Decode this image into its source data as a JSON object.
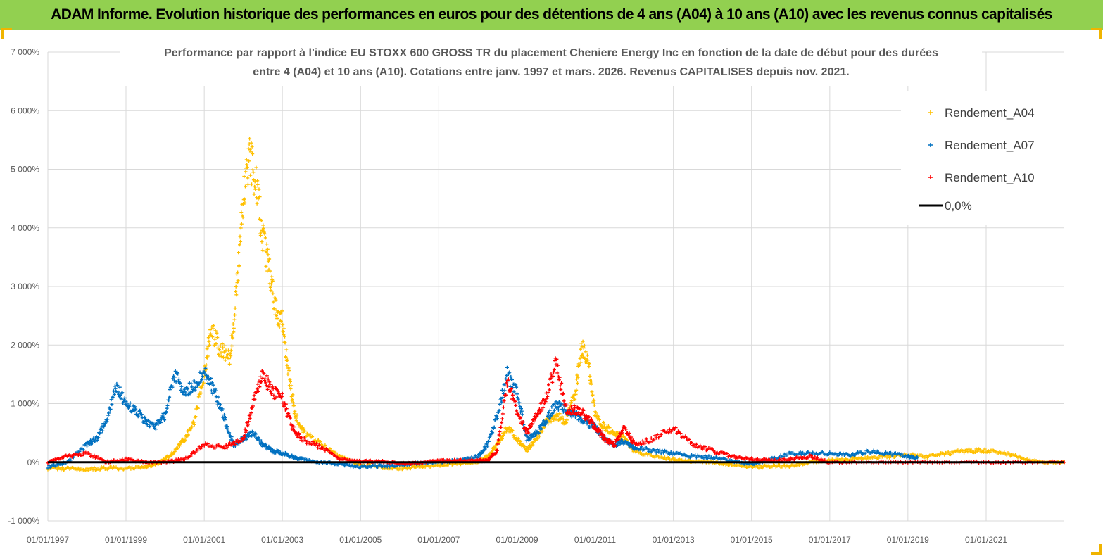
{
  "header": {
    "title": "ADAM Informe. Evolution historique des performances en euros pour des détentions de 4 ans (A04) à 10 ans (A10) avec les revenus connus capitalisés"
  },
  "colors": {
    "banner": "#92d050",
    "a04": "#ffc000",
    "a07": "#0070c0",
    "a10": "#ff0000",
    "zero": "#000000",
    "grid": "#d9d9d9"
  },
  "chart_data": {
    "type": "scatter",
    "title_lines": [
      "Performance par rapport à l'indice EU STOXX 600 GROSS TR  du placement Cheniere Energy Inc en fonction de la date de début pour des durées",
      "entre 4 (A04) et 10 ans (A10). Cotations entre janv. 1997 et mars. 2026. Revenus CAPITALISES depuis nov. 2021."
    ],
    "xlim": [
      "1997-01-01",
      "2023-01-01"
    ],
    "ylim": [
      -1000,
      7000
    ],
    "y_ticks": [
      "-1 000%",
      "0%",
      "1 000%",
      "2 000%",
      "3 000%",
      "4 000%",
      "5 000%",
      "6 000%",
      "7 000%"
    ],
    "x_ticks": [
      "01/01/1997",
      "01/01/1999",
      "01/01/2001",
      "01/01/2003",
      "01/01/2005",
      "01/01/2007",
      "01/01/2009",
      "01/01/2011",
      "01/01/2013",
      "01/01/2015",
      "01/01/2017",
      "01/01/2019",
      "01/01/2021"
    ],
    "grid": true,
    "legend_position": "top-right",
    "legend": [
      "Rendement_A04",
      "Rendement_A07",
      "Rendement_A10",
      "0,0%"
    ],
    "series": [
      {
        "name": "Rendement_A04",
        "color": "#ffc000",
        "x": [
          "1997-01-01",
          "1997-07-01",
          "1998-01-01",
          "1998-07-01",
          "1999-01-01",
          "1999-07-01",
          "1999-10-01",
          "2000-01-01",
          "2000-04-01",
          "2000-07-01",
          "2000-10-01",
          "2001-01-01",
          "2001-03-01",
          "2001-06-01",
          "2001-09-01",
          "2001-11-01",
          "2002-01-01",
          "2002-03-01",
          "2002-05-01",
          "2002-07-01",
          "2002-09-01",
          "2002-11-01",
          "2003-01-01",
          "2003-03-01",
          "2003-05-01",
          "2003-08-01",
          "2004-01-01",
          "2004-07-01",
          "2005-01-01",
          "2005-07-01",
          "2006-01-01",
          "2006-07-01",
          "2007-01-01",
          "2007-07-01",
          "2008-01-01",
          "2008-04-01",
          "2008-07-01",
          "2008-10-01",
          "2009-01-01",
          "2009-04-01",
          "2009-07-01",
          "2009-10-01",
          "2010-01-01",
          "2010-04-01",
          "2010-07-01",
          "2010-09-01",
          "2010-11-01",
          "2011-01-01",
          "2011-04-01",
          "2011-07-01",
          "2011-10-01",
          "2012-01-01",
          "2012-07-01",
          "2013-01-01",
          "2013-07-01",
          "2014-01-01",
          "2014-07-01",
          "2015-01-01",
          "2015-07-01",
          "2016-01-01",
          "2016-07-01",
          "2017-01-01",
          "2017-07-01",
          "2018-01-01",
          "2018-07-01",
          "2019-01-01",
          "2019-07-01",
          "2020-01-01",
          "2020-07-01",
          "2021-01-01",
          "2021-07-01",
          "2022-01-01",
          "2022-07-01",
          "2023-01-01"
        ],
        "y": [
          -100,
          -110,
          -120,
          -100,
          -100,
          -80,
          -40,
          50,
          200,
          400,
          700,
          1500,
          2300,
          1900,
          1800,
          3000,
          4500,
          5200,
          4800,
          3800,
          3300,
          2600,
          2400,
          1500,
          800,
          500,
          300,
          100,
          -50,
          -80,
          -100,
          -80,
          -50,
          -20,
          0,
          100,
          300,
          600,
          400,
          200,
          400,
          700,
          800,
          700,
          1200,
          2000,
          1700,
          800,
          600,
          500,
          400,
          200,
          100,
          50,
          20,
          0,
          -40,
          -80,
          -70,
          -60,
          0,
          30,
          50,
          80,
          100,
          120,
          100,
          150,
          200,
          200,
          150,
          50,
          0,
          0
        ]
      },
      {
        "name": "Rendement_A07",
        "color": "#0070c0",
        "x": [
          "1997-01-01",
          "1997-07-01",
          "1998-01-01",
          "1998-04-01",
          "1998-07-01",
          "1998-10-01",
          "1999-01-01",
          "1999-04-01",
          "1999-07-01",
          "1999-10-01",
          "2000-01-01",
          "2000-04-01",
          "2000-07-01",
          "2000-10-01",
          "2001-01-01",
          "2001-04-01",
          "2001-07-01",
          "2001-10-01",
          "2002-01-01",
          "2002-04-01",
          "2002-07-01",
          "2002-10-01",
          "2003-01-01",
          "2003-04-01",
          "2003-07-01",
          "2004-01-01",
          "2004-07-01",
          "2005-01-01",
          "2005-07-01",
          "2006-01-01",
          "2006-07-01",
          "2007-01-01",
          "2007-07-01",
          "2008-01-01",
          "2008-04-01",
          "2008-07-01",
          "2008-10-01",
          "2009-01-01",
          "2009-04-01",
          "2009-07-01",
          "2009-10-01",
          "2010-01-01",
          "2010-04-01",
          "2010-07-01",
          "2010-10-01",
          "2011-01-01",
          "2011-04-01",
          "2011-07-01",
          "2011-10-01",
          "2012-01-01",
          "2012-07-01",
          "2013-01-01",
          "2013-07-01",
          "2014-01-01",
          "2014-07-01",
          "2015-01-01",
          "2015-07-01",
          "2016-01-01",
          "2016-07-01",
          "2017-01-01",
          "2017-07-01",
          "2018-01-01",
          "2018-07-01",
          "2019-01-01",
          "2019-04-01"
        ],
        "y": [
          -80,
          0,
          300,
          400,
          700,
          1300,
          1000,
          900,
          700,
          600,
          800,
          1500,
          1200,
          1300,
          1600,
          1200,
          800,
          300,
          400,
          500,
          300,
          200,
          150,
          100,
          50,
          0,
          -30,
          -80,
          -60,
          -50,
          -20,
          0,
          30,
          100,
          300,
          800,
          1500,
          1200,
          400,
          500,
          700,
          1000,
          900,
          800,
          700,
          600,
          400,
          300,
          350,
          250,
          200,
          150,
          100,
          80,
          20,
          -30,
          50,
          150,
          150,
          150,
          120,
          180,
          150,
          100,
          80
        ]
      },
      {
        "name": "Rendement_A10",
        "color": "#ff0000",
        "x": [
          "1997-01-01",
          "1997-07-01",
          "1998-01-01",
          "1998-07-01",
          "1999-01-01",
          "1999-07-01",
          "2000-01-01",
          "2000-07-01",
          "2001-01-01",
          "2001-07-01",
          "2002-01-01",
          "2002-04-01",
          "2002-07-01",
          "2002-10-01",
          "2003-01-01",
          "2003-04-01",
          "2003-07-01",
          "2004-01-01",
          "2004-07-01",
          "2005-01-01",
          "2005-07-01",
          "2006-01-01",
          "2006-07-01",
          "2007-01-01",
          "2007-07-01",
          "2008-01-01",
          "2008-04-01",
          "2008-07-01",
          "2008-10-01",
          "2009-01-01",
          "2009-04-01",
          "2009-07-01",
          "2009-10-01",
          "2010-01-01",
          "2010-04-01",
          "2010-07-01",
          "2010-10-01",
          "2011-01-01",
          "2011-04-01",
          "2011-07-01",
          "2011-10-01",
          "2012-01-01",
          "2012-07-01",
          "2013-01-01",
          "2013-07-01",
          "2014-01-01",
          "2014-07-01",
          "2015-01-01",
          "2015-07-01",
          "2016-01-01",
          "2016-07-01",
          "2017-01-01",
          "2018-01-01",
          "2019-01-01",
          "2020-01-01",
          "2021-01-01",
          "2022-01-01",
          "2023-01-01"
        ],
        "y": [
          0,
          100,
          150,
          0,
          50,
          0,
          0,
          50,
          300,
          250,
          400,
          1000,
          1500,
          1200,
          1100,
          600,
          400,
          250,
          50,
          10,
          20,
          -20,
          -10,
          20,
          30,
          30,
          30,
          200,
          1400,
          900,
          500,
          800,
          1100,
          1700,
          900,
          900,
          800,
          600,
          400,
          300,
          600,
          300,
          400,
          600,
          300,
          200,
          100,
          50,
          30,
          50,
          100,
          0,
          0,
          0,
          0,
          0,
          0,
          0
        ]
      }
    ],
    "reference_line": {
      "name": "0,0%",
      "y": 0
    }
  }
}
